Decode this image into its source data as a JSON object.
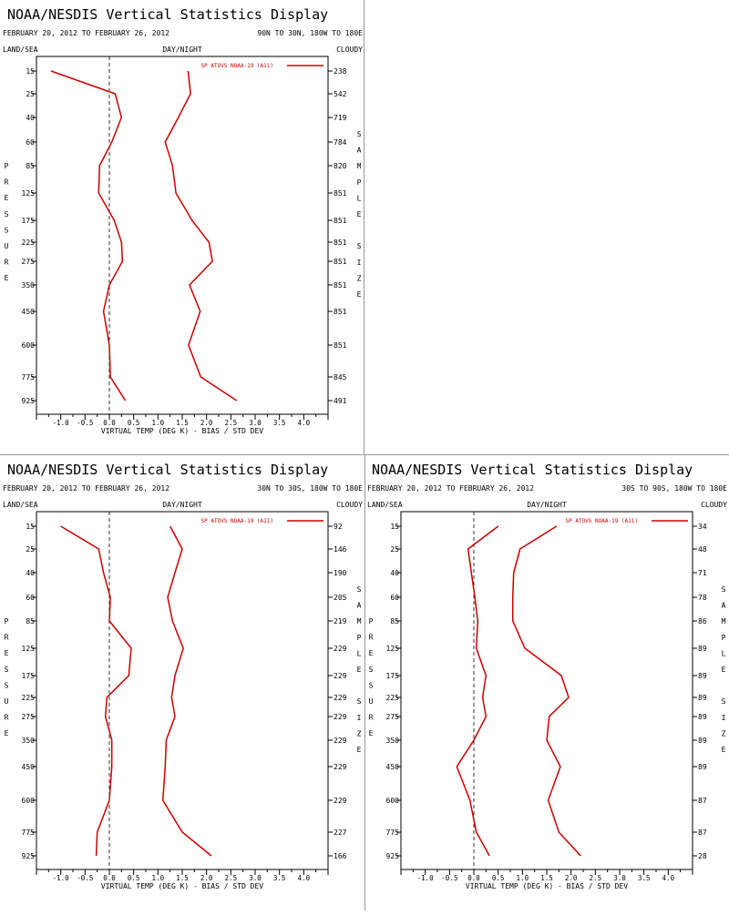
{
  "colors": {
    "background": "#ffffff",
    "divider": "#999999",
    "axis": "#000000",
    "text": "#000000",
    "series": "#cc0000",
    "zero_line": "#000000"
  },
  "chart_data": [
    {
      "type": "line",
      "title": "NOAA/NESDIS Vertical Statistics Display",
      "date_range": "FEBRUARY 20, 2012 TO FEBRUARY 26, 2012",
      "region": "90N TO 30N, 180W TO 180E",
      "header_left": "LAND/SEA",
      "header_center": "DAY/NIGHT",
      "header_right": "CLOUDY",
      "legend": "SP ATOVS NOAA-19 (A11)",
      "ylabel": "PRESSURE",
      "y2label": "SAMPLE SIZE",
      "xlabel": "VIRTUAL TEMP (DEG K) - BIAS / STD DEV",
      "xlim": [
        -1.5,
        4.5
      ],
      "xticks": [
        -1.0,
        -0.5,
        0.0,
        0.5,
        1.0,
        1.5,
        2.0,
        2.5,
        3.0,
        3.5,
        4.0
      ],
      "xtick_labels": [
        "-1.0",
        "-0.5",
        "0.0",
        "0.5",
        "1.0",
        "1.5",
        "2.0",
        "2.5",
        "3.0",
        "3.5",
        "4.0"
      ],
      "pressure_levels": [
        "15",
        "25",
        "40",
        "60",
        "85",
        "125",
        "175",
        "225",
        "275",
        "350",
        "450",
        "600",
        "775",
        "925"
      ],
      "series": [
        {
          "name": "BIAS",
          "values": [
            -1.2,
            0.12,
            0.25,
            0.05,
            -0.2,
            -0.22,
            0.1,
            0.25,
            0.27,
            0.0,
            -0.12,
            0.0,
            0.02,
            0.33
          ]
        },
        {
          "name": "STD DEV",
          "values": [
            1.62,
            1.67,
            1.42,
            1.15,
            1.3,
            1.37,
            1.7,
            2.05,
            2.12,
            1.65,
            1.87,
            1.63,
            1.88,
            2.62
          ]
        }
      ],
      "sample_sizes": [
        "238",
        "542",
        "719",
        "784",
        "820",
        "851",
        "851",
        "851",
        "851",
        "851",
        "851",
        "851",
        "845",
        "491"
      ]
    },
    {
      "type": "line",
      "title": "NOAA/NESDIS Vertical Statistics Display",
      "date_range": "FEBRUARY 20, 2012 TO FEBRUARY 26, 2012",
      "region": "30N TO 30S, 180W TO 180E",
      "header_left": "LAND/SEA",
      "header_center": "DAY/NIGHT",
      "header_right": "CLOUDY",
      "legend": "SP ATOVS NOAA-19 (A11)",
      "ylabel": "PRESSURE",
      "y2label": "SAMPLE SIZE",
      "xlabel": "VIRTUAL TEMP (DEG K) - BIAS / STD DEV",
      "xlim": [
        -1.5,
        4.5
      ],
      "xticks": [
        -1.0,
        -0.5,
        0.0,
        0.5,
        1.0,
        1.5,
        2.0,
        2.5,
        3.0,
        3.5,
        4.0
      ],
      "xtick_labels": [
        "-1.0",
        "-0.5",
        "0.0",
        "0.5",
        "1.0",
        "1.5",
        "2.0",
        "2.5",
        "3.0",
        "3.5",
        "4.0"
      ],
      "pressure_levels": [
        "15",
        "25",
        "40",
        "60",
        "85",
        "125",
        "175",
        "225",
        "275",
        "350",
        "450",
        "600",
        "775",
        "925"
      ],
      "series": [
        {
          "name": "BIAS",
          "values": [
            -1.0,
            -0.22,
            -0.12,
            0.02,
            0.0,
            0.45,
            0.4,
            -0.05,
            -0.08,
            0.05,
            0.05,
            0.0,
            -0.25,
            -0.27
          ]
        },
        {
          "name": "STD DEV",
          "values": [
            1.25,
            1.5,
            1.35,
            1.2,
            1.3,
            1.52,
            1.35,
            1.28,
            1.35,
            1.17,
            1.15,
            1.1,
            1.5,
            2.1
          ]
        }
      ],
      "sample_sizes": [
        "92",
        "146",
        "190",
        "205",
        "219",
        "229",
        "229",
        "229",
        "229",
        "229",
        "229",
        "229",
        "227",
        "166"
      ]
    },
    {
      "type": "line",
      "title": "NOAA/NESDIS Vertical Statistics Display",
      "date_range": "FEBRUARY 20, 2012 TO FEBRUARY 26, 2012",
      "region": "30S TO 90S, 180W TO 180E",
      "header_left": "LAND/SEA",
      "header_center": "DAY/NIGHT",
      "header_right": "CLOUDY",
      "legend": "SP ATOVS NOAA-19 (A11)",
      "ylabel": "PRESSURE",
      "y2label": "SAMPLE SIZE",
      "xlabel": "VIRTUAL TEMP (DEG K) - BIAS / STD DEV",
      "xlim": [
        -1.5,
        4.5
      ],
      "xticks": [
        -1.0,
        -0.5,
        0.0,
        0.5,
        1.0,
        1.5,
        2.0,
        2.5,
        3.0,
        3.5,
        4.0
      ],
      "xtick_labels": [
        "-1.0",
        "-0.5",
        "0.0",
        "0.5",
        "1.0",
        "1.5",
        "2.0",
        "2.5",
        "3.0",
        "3.5",
        "4.0"
      ],
      "pressure_levels": [
        "15",
        "25",
        "40",
        "60",
        "85",
        "125",
        "175",
        "225",
        "275",
        "350",
        "450",
        "600",
        "775",
        "925"
      ],
      "series": [
        {
          "name": "BIAS",
          "values": [
            0.5,
            -0.12,
            -0.05,
            0.02,
            0.08,
            0.05,
            0.25,
            0.18,
            0.25,
            0.0,
            -0.35,
            -0.08,
            0.05,
            0.32
          ]
        },
        {
          "name": "STD DEV",
          "values": [
            1.7,
            0.95,
            0.82,
            0.8,
            0.8,
            1.05,
            1.8,
            1.95,
            1.55,
            1.5,
            1.78,
            1.53,
            1.75,
            2.2
          ]
        }
      ],
      "sample_sizes": [
        "34",
        "48",
        "71",
        "78",
        "86",
        "89",
        "89",
        "89",
        "89",
        "89",
        "89",
        "87",
        "87",
        "28"
      ]
    }
  ]
}
